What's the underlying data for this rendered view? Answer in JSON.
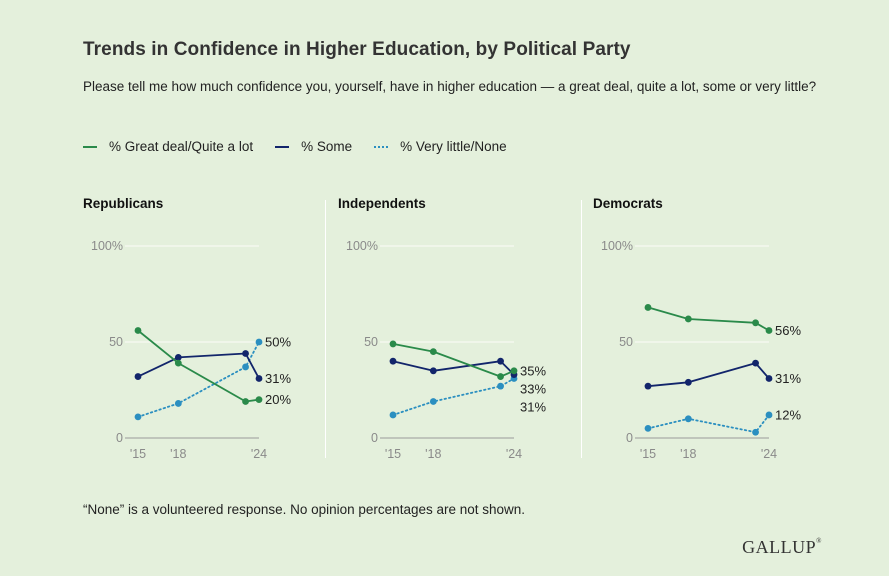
{
  "header": {
    "title": "Trends in Confidence in Higher Education, by Political Party",
    "subtitle": "Please tell me how much confidence you, yourself, have in higher education — a great deal, quite a lot, some or very little?"
  },
  "legend": {
    "great": "% Great deal/Quite a lot",
    "some": "% Some",
    "little": "% Very little/None"
  },
  "colors": {
    "great": "#2a8a4a",
    "some": "#12256b",
    "little": "#2b8fc0",
    "grid": "#f6faf2",
    "axis_text": "#8a8a8a",
    "label_text": "#222222"
  },
  "footer": {
    "note": "“None” is a volunteered response. No opinion percentages are not shown.",
    "logo": "GALLUP"
  },
  "chart_data": [
    {
      "type": "line",
      "title": "Republicans",
      "x": [
        2015,
        2018,
        2023,
        2024
      ],
      "x_ticks": [
        {
          "value": 2015,
          "label": "'15"
        },
        {
          "value": 2018,
          "label": "'18"
        },
        {
          "value": 2024,
          "label": "'24"
        }
      ],
      "y_ticks": [
        {
          "value": 0,
          "label": "0"
        },
        {
          "value": 50,
          "label": "50"
        },
        {
          "value": 100,
          "label": "100%"
        }
      ],
      "ylim": [
        0,
        100
      ],
      "series": [
        {
          "key": "great",
          "style": "solid",
          "values": [
            56,
            39,
            19,
            20
          ],
          "end_label": "20%"
        },
        {
          "key": "some",
          "style": "solid",
          "values": [
            32,
            42,
            44,
            31
          ],
          "end_label": "31%"
        },
        {
          "key": "little",
          "style": "dotted",
          "values": [
            11,
            18,
            37,
            50
          ],
          "end_label": "50%"
        }
      ]
    },
    {
      "type": "line",
      "title": "Independents",
      "x": [
        2015,
        2018,
        2023,
        2024
      ],
      "x_ticks": [
        {
          "value": 2015,
          "label": "'15"
        },
        {
          "value": 2018,
          "label": "'18"
        },
        {
          "value": 2024,
          "label": "'24"
        }
      ],
      "y_ticks": [
        {
          "value": 0,
          "label": "0"
        },
        {
          "value": 50,
          "label": "50"
        },
        {
          "value": 100,
          "label": "100%"
        }
      ],
      "ylim": [
        0,
        100
      ],
      "series": [
        {
          "key": "great",
          "style": "solid",
          "values": [
            49,
            45,
            32,
            35
          ],
          "end_label": "35%"
        },
        {
          "key": "some",
          "style": "solid",
          "values": [
            40,
            35,
            40,
            33
          ],
          "end_label": "33%"
        },
        {
          "key": "little",
          "style": "dotted",
          "values": [
            12,
            19,
            27,
            31
          ],
          "end_label": "31%"
        }
      ]
    },
    {
      "type": "line",
      "title": "Democrats",
      "x": [
        2015,
        2018,
        2023,
        2024
      ],
      "x_ticks": [
        {
          "value": 2015,
          "label": "'15"
        },
        {
          "value": 2018,
          "label": "'18"
        },
        {
          "value": 2024,
          "label": "'24"
        }
      ],
      "y_ticks": [
        {
          "value": 0,
          "label": "0"
        },
        {
          "value": 50,
          "label": "50"
        },
        {
          "value": 100,
          "label": "100%"
        }
      ],
      "ylim": [
        0,
        100
      ],
      "series": [
        {
          "key": "great",
          "style": "solid",
          "values": [
            68,
            62,
            60,
            56
          ],
          "end_label": "56%"
        },
        {
          "key": "some",
          "style": "solid",
          "values": [
            27,
            29,
            39,
            31
          ],
          "end_label": "31%"
        },
        {
          "key": "little",
          "style": "dotted",
          "values": [
            5,
            10,
            3,
            12
          ],
          "end_label": "12%"
        }
      ]
    }
  ]
}
